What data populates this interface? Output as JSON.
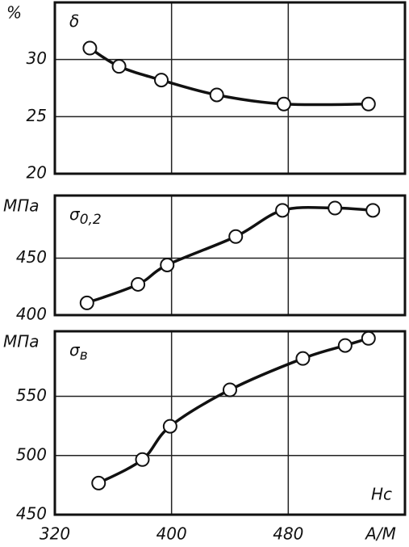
{
  "chart_data": [
    {
      "type": "line",
      "unit": "%",
      "annotation": "δ",
      "x": [
        344,
        364,
        393,
        431,
        477,
        535
      ],
      "series": [
        {
          "color": "#111",
          "values": [
            31.0,
            29.4,
            28.2,
            26.9,
            26.1,
            26.1
          ]
        }
      ],
      "xlim": [
        320,
        560
      ],
      "xticks": [
        320,
        400,
        480
      ],
      "ylim": [
        20,
        35
      ],
      "yticks": [
        20,
        25,
        30
      ],
      "grid": true
    },
    {
      "type": "line",
      "unit": "МПа",
      "annotation": "σ",
      "annotation_sub": "0,2",
      "x": [
        342,
        377,
        397,
        444,
        476,
        512,
        538
      ],
      "series": [
        {
          "color": "#111",
          "values": [
            410.7,
            427,
            444,
            469,
            492,
            494,
            492
          ]
        }
      ],
      "xlim": [
        320,
        560
      ],
      "xticks": [
        320,
        400,
        480
      ],
      "ylim": [
        400,
        505
      ],
      "yticks": [
        400,
        450
      ],
      "grid": true
    },
    {
      "type": "line",
      "unit": "МПа",
      "annotation": "σ",
      "annotation_sub": "в",
      "note": "Hc",
      "xlabel": "A/M",
      "x": [
        350,
        380,
        399,
        440,
        490,
        519,
        535
      ],
      "series": [
        {
          "color": "#111",
          "values": [
            476.7,
            496.6,
            524.7,
            555.5,
            582,
            593,
            599
          ]
        }
      ],
      "xlim": [
        320,
        560
      ],
      "xticks": [
        320,
        400,
        480
      ],
      "ylim": [
        450,
        605
      ],
      "yticks": [
        450,
        500,
        550
      ],
      "grid": true
    }
  ]
}
